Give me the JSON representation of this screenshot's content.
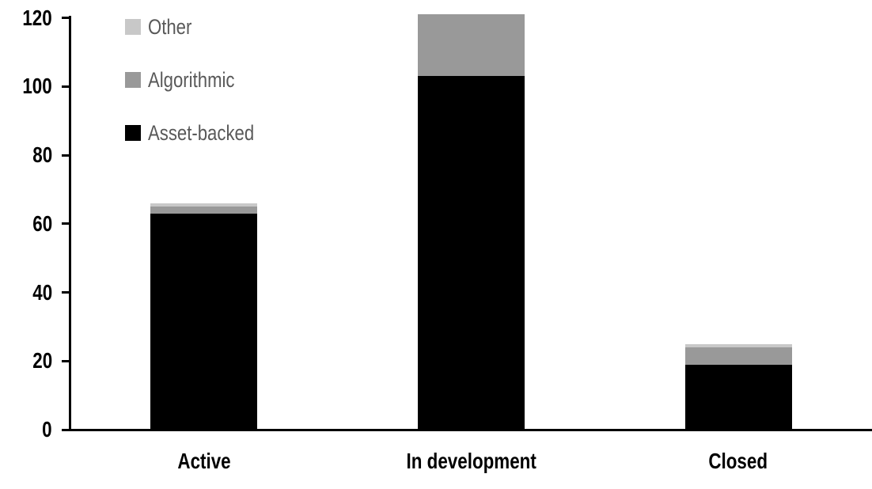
{
  "chart_data": {
    "type": "bar",
    "stacked": true,
    "title": "",
    "xlabel": "",
    "ylabel": "",
    "categories": [
      "Active",
      "In development",
      "Closed"
    ],
    "series": [
      {
        "name": "Asset-backed",
        "color": "#000000",
        "values": [
          63,
          103,
          19
        ]
      },
      {
        "name": "Algorithmic",
        "color": "#999999",
        "values": [
          2,
          18,
          5
        ]
      },
      {
        "name": "Other",
        "color": "#c8c8c8",
        "values": [
          1,
          0,
          1
        ]
      }
    ],
    "stack_order_bottom_to_top": [
      "Asset-backed",
      "Algorithmic",
      "Other"
    ],
    "legend": {
      "position": "top-left",
      "items_top_to_bottom": [
        "Other",
        "Algorithmic",
        "Asset-backed"
      ]
    },
    "yaxis": {
      "ticks": [
        0,
        20,
        40,
        60,
        80,
        100,
        120
      ],
      "lim": [
        0,
        120
      ]
    },
    "grid": false,
    "colors": {
      "axis": "#000000",
      "tick_label": "#000000",
      "legend_text": "#595959",
      "background": "#ffffff"
    }
  }
}
